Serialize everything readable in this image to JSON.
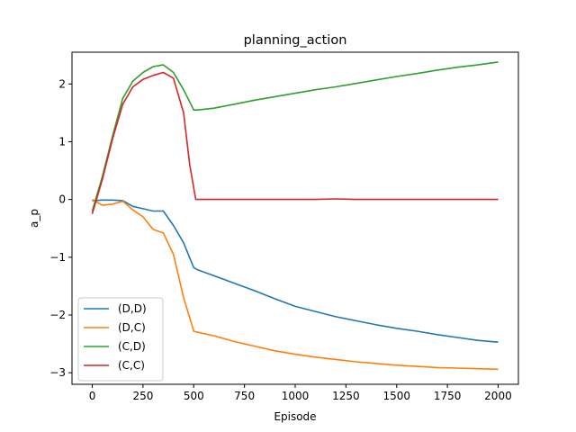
{
  "chart_data": {
    "type": "line",
    "title": "planning_action",
    "xlabel": "Episode",
    "ylabel": "a_p",
    "xlim": [
      -100,
      2100
    ],
    "ylim": [
      -3.2,
      2.55
    ],
    "xticks": [
      0,
      250,
      500,
      750,
      1000,
      1250,
      1500,
      1750,
      2000
    ],
    "yticks": [
      -3,
      -2,
      -1,
      0,
      1,
      2
    ],
    "xtick_labels": [
      "0",
      "250",
      "500",
      "750",
      "1000",
      "1250",
      "1500",
      "1750",
      "2000"
    ],
    "ytick_labels": [
      "−3",
      "−2",
      "−1",
      "0",
      "1",
      "2"
    ],
    "legend_position": "lower-left",
    "grid": false,
    "series": [
      {
        "name": "(D,D)",
        "color": "#1f77b4",
        "points": [
          [
            0,
            -0.02
          ],
          [
            50,
            -0.01
          ],
          [
            100,
            -0.01
          ],
          [
            150,
            -0.02
          ],
          [
            200,
            -0.12
          ],
          [
            250,
            -0.16
          ],
          [
            300,
            -0.2
          ],
          [
            350,
            -0.2
          ],
          [
            400,
            -0.45
          ],
          [
            450,
            -0.75
          ],
          [
            500,
            -1.18
          ],
          [
            520,
            -1.22
          ],
          [
            600,
            -1.32
          ],
          [
            700,
            -1.45
          ],
          [
            800,
            -1.58
          ],
          [
            900,
            -1.72
          ],
          [
            1000,
            -1.85
          ],
          [
            1100,
            -1.94
          ],
          [
            1200,
            -2.03
          ],
          [
            1300,
            -2.1
          ],
          [
            1400,
            -2.17
          ],
          [
            1500,
            -2.23
          ],
          [
            1600,
            -2.28
          ],
          [
            1700,
            -2.34
          ],
          [
            1800,
            -2.39
          ],
          [
            1900,
            -2.44
          ],
          [
            2000,
            -2.47
          ]
        ]
      },
      {
        "name": "(D,C)",
        "color": "#ff7f0e",
        "points": [
          [
            0,
            0.0
          ],
          [
            50,
            -0.1
          ],
          [
            100,
            -0.08
          ],
          [
            150,
            -0.03
          ],
          [
            200,
            -0.18
          ],
          [
            250,
            -0.3
          ],
          [
            300,
            -0.52
          ],
          [
            350,
            -0.58
          ],
          [
            400,
            -0.95
          ],
          [
            450,
            -1.7
          ],
          [
            500,
            -2.28
          ],
          [
            520,
            -2.3
          ],
          [
            600,
            -2.36
          ],
          [
            700,
            -2.46
          ],
          [
            800,
            -2.54
          ],
          [
            900,
            -2.62
          ],
          [
            1000,
            -2.68
          ],
          [
            1100,
            -2.73
          ],
          [
            1200,
            -2.77
          ],
          [
            1300,
            -2.81
          ],
          [
            1400,
            -2.84
          ],
          [
            1500,
            -2.87
          ],
          [
            1600,
            -2.89
          ],
          [
            1700,
            -2.91
          ],
          [
            1800,
            -2.92
          ],
          [
            1900,
            -2.93
          ],
          [
            2000,
            -2.94
          ]
        ]
      },
      {
        "name": "(C,D)",
        "color": "#2ca02c",
        "points": [
          [
            0,
            -0.2
          ],
          [
            50,
            0.4
          ],
          [
            100,
            1.1
          ],
          [
            150,
            1.75
          ],
          [
            200,
            2.05
          ],
          [
            250,
            2.2
          ],
          [
            300,
            2.3
          ],
          [
            350,
            2.33
          ],
          [
            400,
            2.2
          ],
          [
            450,
            1.9
          ],
          [
            500,
            1.55
          ],
          [
            520,
            1.55
          ],
          [
            600,
            1.58
          ],
          [
            700,
            1.65
          ],
          [
            800,
            1.72
          ],
          [
            900,
            1.78
          ],
          [
            1000,
            1.84
          ],
          [
            1100,
            1.9
          ],
          [
            1200,
            1.95
          ],
          [
            1300,
            2.01
          ],
          [
            1400,
            2.07
          ],
          [
            1500,
            2.13
          ],
          [
            1600,
            2.18
          ],
          [
            1700,
            2.24
          ],
          [
            1800,
            2.29
          ],
          [
            1900,
            2.33
          ],
          [
            2000,
            2.38
          ]
        ]
      },
      {
        "name": "(C,C)",
        "color": "#d62728",
        "points": [
          [
            0,
            -0.25
          ],
          [
            50,
            0.35
          ],
          [
            100,
            1.05
          ],
          [
            150,
            1.65
          ],
          [
            200,
            1.95
          ],
          [
            250,
            2.08
          ],
          [
            300,
            2.15
          ],
          [
            350,
            2.2
          ],
          [
            400,
            2.1
          ],
          [
            450,
            1.5
          ],
          [
            480,
            0.6
          ],
          [
            510,
            0.0
          ],
          [
            600,
            0.0
          ],
          [
            700,
            0.0
          ],
          [
            800,
            0.0
          ],
          [
            900,
            0.0
          ],
          [
            1000,
            0.0
          ],
          [
            1100,
            0.0
          ],
          [
            1200,
            0.01
          ],
          [
            1300,
            0.0
          ],
          [
            1400,
            0.0
          ],
          [
            1500,
            0.0
          ],
          [
            1600,
            0.0
          ],
          [
            1700,
            0.0
          ],
          [
            1800,
            0.0
          ],
          [
            1900,
            0.0
          ],
          [
            2000,
            0.0
          ]
        ]
      }
    ]
  }
}
